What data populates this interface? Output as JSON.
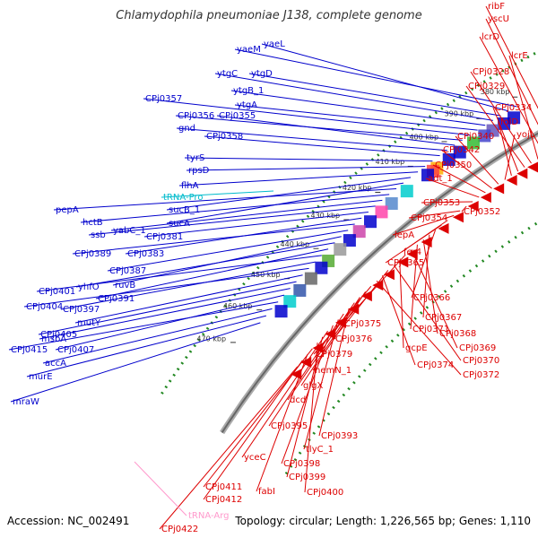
{
  "title": "Chlamydophila pneumoniae J138, complete genome",
  "footer": {
    "accession": "Accession: NC_002491",
    "summary": "Topology: circular; Length: 1,226,565 bp; Genes: 1,110"
  },
  "colors": {
    "forward": "#0000cc",
    "reverse": "#dd0000",
    "rna_trna": "#00bbcc",
    "rna_arg": "#ff99cc",
    "backbone": "#888888",
    "gc_dots": "#228822"
  },
  "kbp_marks": [
    "380 kbp",
    "390 kbp",
    "400 kbp",
    "410 kbp",
    "420 kbp",
    "430 kbp",
    "440 kbp",
    "450 kbp",
    "460 kbp",
    "470 kbp"
  ],
  "genes_blue": [
    "yaeM",
    "yaeL",
    "ytgD",
    "ytgC",
    "ytgB_1",
    "ytgA",
    "CPj0357",
    "CPj0356",
    "CPj0355",
    "gnd",
    "CPj0358",
    "tyrS",
    "rpsD",
    "flhA",
    "sucB_1",
    "sucA",
    "pepA",
    "hctB",
    "yabC_1",
    "ssb",
    "CPj0381",
    "CPj0383",
    "CPj0389",
    "CPj0387",
    "ruvB",
    "yhfO",
    "CPj0391",
    "CPj0401",
    "CPj0397",
    "CPj0404",
    "mutY",
    "CPj0405",
    "msbA",
    "CPj0407",
    "CPj0415",
    "accA",
    "murE",
    "mraW"
  ],
  "genes_red": [
    "ribF",
    "yscU",
    "lcrD",
    "lcrE",
    "CPj0328",
    "CPj0329",
    "CPj0334",
    "folD",
    "yojL",
    "CPj0340",
    "CPj0342",
    "CPj0350",
    "adt_1",
    "CPj0353",
    "CPj0352",
    "CPj0354",
    "lepA",
    "fer4",
    "CPj0365",
    "CPj0366",
    "CPj0367",
    "CPj0368",
    "CPj0371",
    "CPj0369",
    "CPj0375",
    "gcpE",
    "CPj0370",
    "CPj0376",
    "CPj0374",
    "CPj0372",
    "CPj0379",
    "hemN_1",
    "glgX",
    "dcd",
    "CPj0393",
    "CPj0395",
    "tlyC_1",
    "CPj0398",
    "yceC",
    "CPj0399",
    "CPj0400",
    "CPj0411",
    "fabI",
    "CPj0412",
    "CPj0422"
  ],
  "genes_rna": [
    "tRNA-Pro",
    "tRNA-Arg"
  ]
}
